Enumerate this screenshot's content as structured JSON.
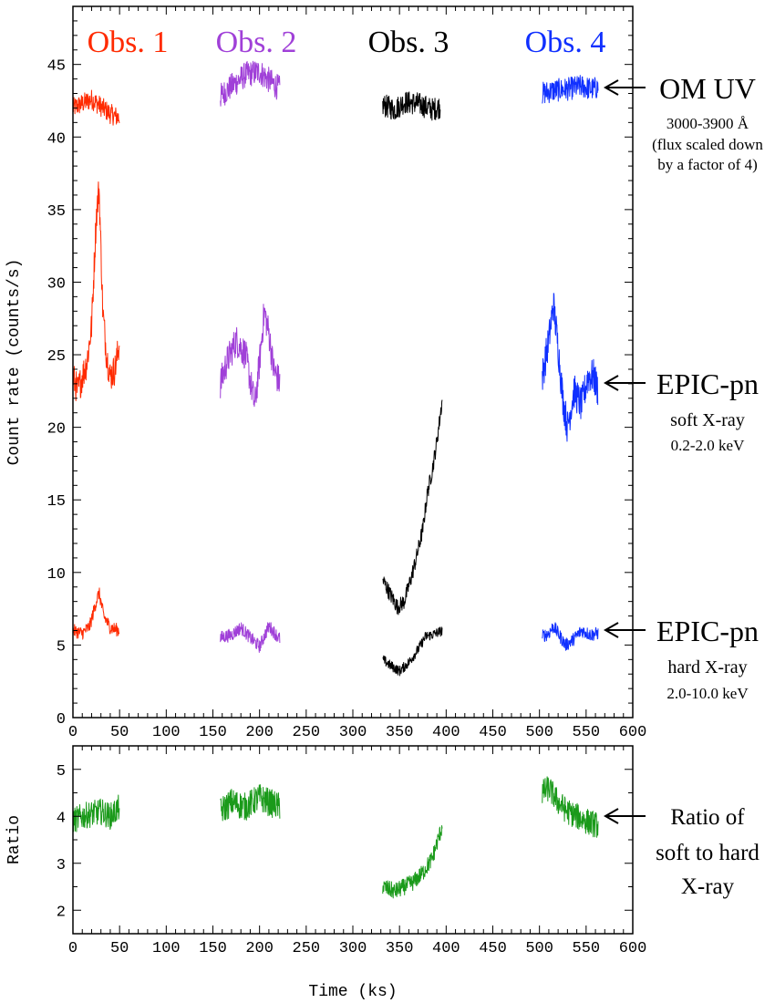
{
  "chart_data": [
    {
      "type": "line",
      "panel": "top",
      "ylabel": "Count rate (counts/s)",
      "xlabel": "",
      "xlim": [
        0,
        600
      ],
      "ylim": [
        0,
        49
      ],
      "xticks": [
        0,
        50,
        100,
        150,
        200,
        250,
        300,
        350,
        400,
        450,
        500,
        550,
        600
      ],
      "yticks": [
        0,
        5,
        10,
        15,
        20,
        25,
        30,
        35,
        40,
        45
      ],
      "obs_labels": [
        {
          "text": "Obs. 1",
          "color": "#ff2a00"
        },
        {
          "text": "Obs. 2",
          "color": "#a040d8"
        },
        {
          "text": "Obs. 3",
          "color": "#000000"
        },
        {
          "text": "Obs. 4",
          "color": "#1030ff"
        }
      ],
      "series": [
        {
          "name": "OM UV Obs. 1",
          "color": "#ff2a00",
          "noise": 0.7,
          "x": [
            0,
            10,
            20,
            30,
            40,
            50
          ],
          "y": [
            42.0,
            42.3,
            42.6,
            42.1,
            41.6,
            41.3
          ]
        },
        {
          "name": "OM UV Obs. 2",
          "color": "#a040d8",
          "noise": 0.9,
          "x": [
            158,
            170,
            185,
            200,
            212,
            222
          ],
          "y": [
            42.8,
            43.5,
            44.3,
            44.5,
            43.8,
            43.3
          ]
        },
        {
          "name": "OM UV Obs. 3",
          "color": "#000000",
          "noise": 0.8,
          "x": [
            332,
            345,
            355,
            370,
            385,
            394
          ],
          "y": [
            42.2,
            41.9,
            42.4,
            42.3,
            41.9,
            42.1
          ]
        },
        {
          "name": "OM UV Obs. 4",
          "color": "#1030ff",
          "noise": 0.8,
          "x": [
            503,
            515,
            530,
            545,
            555,
            563
          ],
          "y": [
            43.0,
            43.2,
            43.3,
            43.5,
            43.3,
            43.4
          ]
        },
        {
          "name": "EPIC-pn soft Obs. 1",
          "color": "#ff2a00",
          "noise": 1.1,
          "x": [
            0,
            5,
            10,
            15,
            20,
            25,
            28,
            32,
            36,
            40,
            45,
            50
          ],
          "y": [
            23.5,
            22.5,
            23.5,
            24.5,
            27.0,
            34.5,
            36.5,
            28.0,
            25.0,
            23.5,
            24.0,
            25.8
          ]
        },
        {
          "name": "EPIC-pn soft Obs. 2",
          "color": "#a040d8",
          "noise": 1.1,
          "x": [
            158,
            165,
            175,
            185,
            195,
            200,
            205,
            210,
            215,
            222
          ],
          "y": [
            23.0,
            24.5,
            26.0,
            25.0,
            21.5,
            24.5,
            28.0,
            26.5,
            24.0,
            23.0
          ]
        },
        {
          "name": "EPIC-pn soft Obs. 3",
          "color": "#000000",
          "noise": 0.55,
          "x": [
            332,
            340,
            348,
            355,
            362,
            368,
            375,
            380,
            385,
            390,
            396
          ],
          "y": [
            9.5,
            8.5,
            7.6,
            8.0,
            9.5,
            11.0,
            13.0,
            15.5,
            17.0,
            19.0,
            22.0
          ]
        },
        {
          "name": "EPIC-pn soft Obs. 4",
          "color": "#1030ff",
          "noise": 1.2,
          "x": [
            503,
            510,
            515,
            520,
            525,
            530,
            537,
            545,
            552,
            558,
            563
          ],
          "y": [
            23.5,
            26.0,
            28.5,
            25.5,
            22.0,
            20.0,
            22.5,
            21.5,
            23.5,
            23.5,
            22.5
          ]
        },
        {
          "name": "EPIC-pn hard Obs. 1",
          "color": "#ff2a00",
          "noise": 0.45,
          "x": [
            0,
            10,
            18,
            25,
            28,
            33,
            40,
            50
          ],
          "y": [
            6.0,
            5.8,
            6.3,
            8.0,
            8.6,
            7.0,
            6.2,
            6.0
          ]
        },
        {
          "name": "EPIC-pn hard Obs. 2",
          "color": "#a040d8",
          "noise": 0.45,
          "x": [
            158,
            170,
            180,
            190,
            200,
            210,
            222
          ],
          "y": [
            5.5,
            5.7,
            6.2,
            5.5,
            4.9,
            6.3,
            5.4
          ]
        },
        {
          "name": "EPIC-pn hard Obs. 3",
          "color": "#000000",
          "noise": 0.35,
          "x": [
            332,
            340,
            350,
            360,
            370,
            378,
            385,
            396
          ],
          "y": [
            4.0,
            3.6,
            3.2,
            3.8,
            4.7,
            5.6,
            5.7,
            6.0
          ]
        },
        {
          "name": "EPIC-pn hard Obs. 4",
          "color": "#1030ff",
          "noise": 0.45,
          "x": [
            503,
            510,
            515,
            520,
            528,
            535,
            545,
            555,
            563
          ],
          "y": [
            5.6,
            5.8,
            6.3,
            5.8,
            5.0,
            5.3,
            6.0,
            5.7,
            5.8
          ]
        }
      ]
    },
    {
      "type": "line",
      "panel": "bottom",
      "ylabel": "Ratio",
      "xlabel": "Time (ks)",
      "xlim": [
        0,
        600
      ],
      "ylim": [
        1.5,
        5.5
      ],
      "xticks": [
        0,
        50,
        100,
        150,
        200,
        250,
        300,
        350,
        400,
        450,
        500,
        550,
        600
      ],
      "yticks": [
        2,
        3,
        4,
        5
      ],
      "series": [
        {
          "name": "Ratio Obs. 1",
          "color": "#1a9a1a",
          "noise": 0.28,
          "x": [
            0,
            10,
            20,
            30,
            40,
            50
          ],
          "y": [
            3.9,
            4.0,
            4.05,
            4.1,
            4.0,
            4.2
          ]
        },
        {
          "name": "Ratio Obs. 2",
          "color": "#1a9a1a",
          "noise": 0.3,
          "x": [
            158,
            170,
            185,
            200,
            210,
            222
          ],
          "y": [
            4.1,
            4.3,
            4.2,
            4.4,
            4.3,
            4.2
          ]
        },
        {
          "name": "Ratio Obs. 3",
          "color": "#1a9a1a",
          "noise": 0.18,
          "x": [
            332,
            345,
            355,
            365,
            375,
            385,
            396
          ],
          "y": [
            2.5,
            2.4,
            2.5,
            2.6,
            2.8,
            3.1,
            3.8
          ]
        },
        {
          "name": "Ratio Obs. 4",
          "color": "#1a9a1a",
          "noise": 0.28,
          "x": [
            503,
            510,
            520,
            530,
            540,
            550,
            563
          ],
          "y": [
            4.5,
            4.6,
            4.3,
            4.1,
            4.0,
            3.9,
            3.8
          ]
        }
      ]
    }
  ],
  "annotations": {
    "om_uv": {
      "label": "OM UV",
      "band": "3000-3900 Å",
      "note_line1": "(flux scaled down",
      "note_line2": "by a factor of 4)"
    },
    "epic_soft": {
      "label": "EPIC-pn",
      "band_name": "soft X-ray",
      "band": "0.2-2.0 keV"
    },
    "epic_hard": {
      "label": "EPIC-pn",
      "band_name": "hard X-ray",
      "band": "2.0-10.0 keV"
    },
    "ratio": {
      "line1": "Ratio of",
      "line2": "soft to hard",
      "line3": "X-ray"
    }
  }
}
